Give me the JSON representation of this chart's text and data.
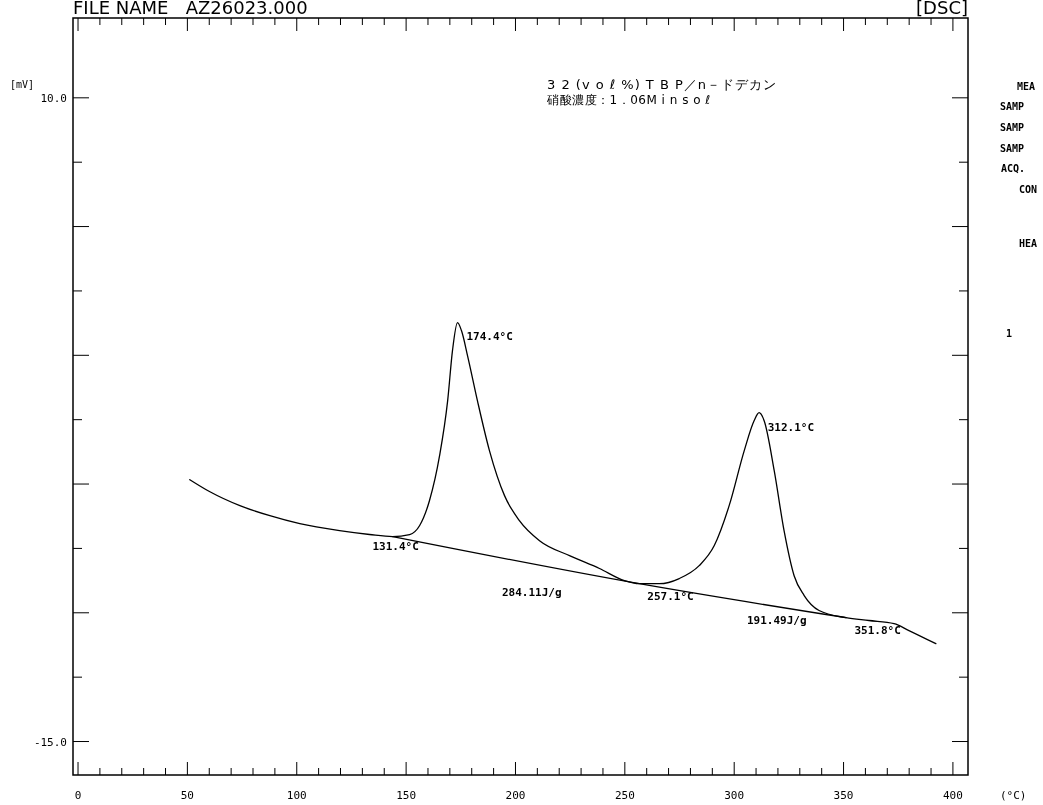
{
  "chart_data": {
    "type": "line",
    "title": "FILE NAME   AZ26023.000",
    "subtitle": "[DSC]",
    "ylabel": "[mV]",
    "xlabel": "(°C)",
    "xlim": [
      -2.3,
      406.9
    ],
    "ylim": [
      -16.3,
      13.1
    ],
    "xticks": [
      0,
      {
        "value": 10,
        "label": null
      },
      {
        "value": 20,
        "label": null
      },
      {
        "value": 30,
        "label": null
      },
      {
        "value": 40,
        "label": null
      },
      50,
      {
        "value": 60,
        "label": null
      },
      {
        "value": 70,
        "label": null
      },
      {
        "value": 80,
        "label": null
      },
      {
        "value": 90,
        "label": null
      },
      100,
      {
        "value": 110,
        "label": null
      },
      {
        "value": 120,
        "label": null
      },
      {
        "value": 130,
        "label": null
      },
      {
        "value": 140,
        "label": null
      },
      150,
      {
        "value": 160,
        "label": null
      },
      {
        "value": 170,
        "label": null
      },
      {
        "value": 180,
        "label": null
      },
      {
        "value": 190,
        "label": null
      },
      200,
      {
        "value": 210,
        "label": null
      },
      {
        "value": 220,
        "label": null
      },
      {
        "value": 230,
        "label": null
      },
      {
        "value": 240,
        "label": null
      },
      250,
      {
        "value": 260,
        "label": null
      },
      {
        "value": 270,
        "label": null
      },
      {
        "value": 280,
        "label": null
      },
      {
        "value": 290,
        "label": null
      },
      300,
      {
        "value": 310,
        "label": null
      },
      {
        "value": 320,
        "label": null
      },
      {
        "value": 330,
        "label": null
      },
      {
        "value": 340,
        "label": null
      },
      350,
      {
        "value": 360,
        "label": null
      },
      {
        "value": 370,
        "label": null
      },
      {
        "value": 380,
        "label": null
      },
      {
        "value": 390,
        "label": null
      },
      400
    ],
    "yticks": [
      {
        "value": 10,
        "label": "10.0"
      },
      {
        "value": 7.5,
        "label": null
      },
      {
        "value": 5,
        "label": null
      },
      {
        "value": 2.5,
        "label": null
      },
      {
        "value": 0,
        "label": null
      },
      {
        "value": -2.5,
        "label": null
      },
      {
        "value": -5,
        "label": null
      },
      {
        "value": -7.5,
        "label": null
      },
      {
        "value": -10,
        "label": null
      },
      {
        "value": -12.5,
        "label": null
      },
      {
        "value": -15,
        "label": "-15.0"
      }
    ],
    "series": [
      {
        "color": "#000000",
        "x": [
          51.1,
          60.3,
          74.0,
          87.7,
          101.4,
          119.6,
          133.3,
          143.8,
          151.6,
          156.2,
          160.7,
          165.3,
          169.0,
          171.2,
          173.5,
          175.3,
          178.1,
          182.6,
          188.1,
          195.0,
          201.8,
          211.0,
          224.7,
          238.4,
          249.8,
          256.6,
          265.8,
          274.9,
          284.0,
          290.9,
          297.7,
          304.6,
          309.1,
          311.4,
          313.7,
          318.3,
          322.8,
          327.4,
          332.0,
          338.8,
          351.1,
          361.6,
          373.1,
          379.9,
          392.2
        ],
        "values": [
          -4.83,
          -5.3,
          -5.84,
          -6.23,
          -6.54,
          -6.81,
          -6.96,
          -7.04,
          -6.96,
          -6.61,
          -5.64,
          -3.9,
          -1.76,
          0.18,
          1.27,
          0.96,
          -0.02,
          -1.76,
          -3.7,
          -5.45,
          -6.42,
          -7.2,
          -7.78,
          -8.28,
          -8.75,
          -8.87,
          -8.87,
          -8.67,
          -8.17,
          -7.39,
          -5.84,
          -3.7,
          -2.54,
          -2.23,
          -2.54,
          -4.48,
          -6.81,
          -8.56,
          -9.33,
          -9.91,
          -10.19,
          -10.3,
          -10.42,
          -10.69,
          -11.2
        ]
      },
      {
        "color": "#000000",
        "x": [
          143.8,
          256.6,
          351.1
        ],
        "values": [
          -7.04,
          -8.87,
          -10.19
        ]
      }
    ],
    "annotations": [
      "3 2 (v o ℓ %) T B P／n－ドデカン",
      "硝酸濃度：1．06M  i n  s o ℓ",
      "MEA",
      "SAMP",
      "SAMP",
      "SAMP",
      "ACQ.",
      "CON",
      "HEA",
      "1",
      "284.11J/g",
      "191.49J/g",
      {
        "text": "174.4°C",
        "x": 174.4,
        "y": 1.2
      },
      {
        "text": "131.4°C",
        "x": 131.4,
        "y": -6.95
      },
      {
        "text": "257.1°C",
        "x": 257.1,
        "y": -8.87
      },
      {
        "text": "312.1°C",
        "x": 312.1,
        "y": -2.3
      },
      {
        "text": "351.8°C",
        "x": 351.8,
        "y": -10.2
      }
    ]
  }
}
